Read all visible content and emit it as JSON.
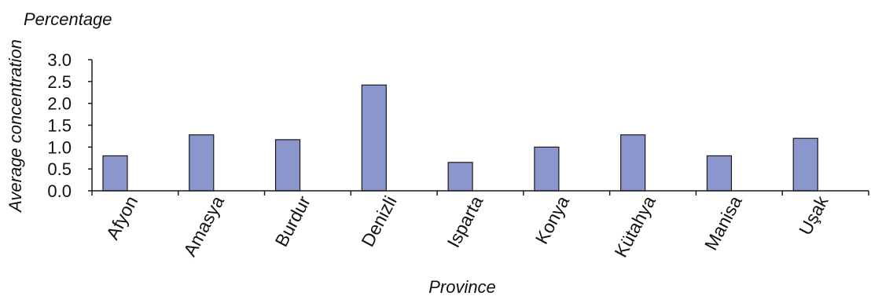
{
  "chart_data": {
    "type": "bar",
    "title": "Percentage",
    "xlabel": "Province",
    "ylabel": "Average concentration",
    "categories": [
      "Afyon",
      "Amasya",
      "Burdur",
      "Denizli",
      "Isparta",
      "Konya",
      "Kütahya",
      "Manisa",
      "Uşak"
    ],
    "values": [
      0.8,
      1.28,
      1.17,
      2.42,
      0.65,
      1.0,
      1.28,
      0.8,
      1.2
    ],
    "ylim": [
      0,
      3.0
    ],
    "yticks": [
      "0.0",
      "0.5",
      "1.0",
      "1.5",
      "2.0",
      "2.5",
      "3.0"
    ],
    "grid": false,
    "bar_color": "#8b96cc",
    "bar_stroke": "#1a1a1a"
  }
}
